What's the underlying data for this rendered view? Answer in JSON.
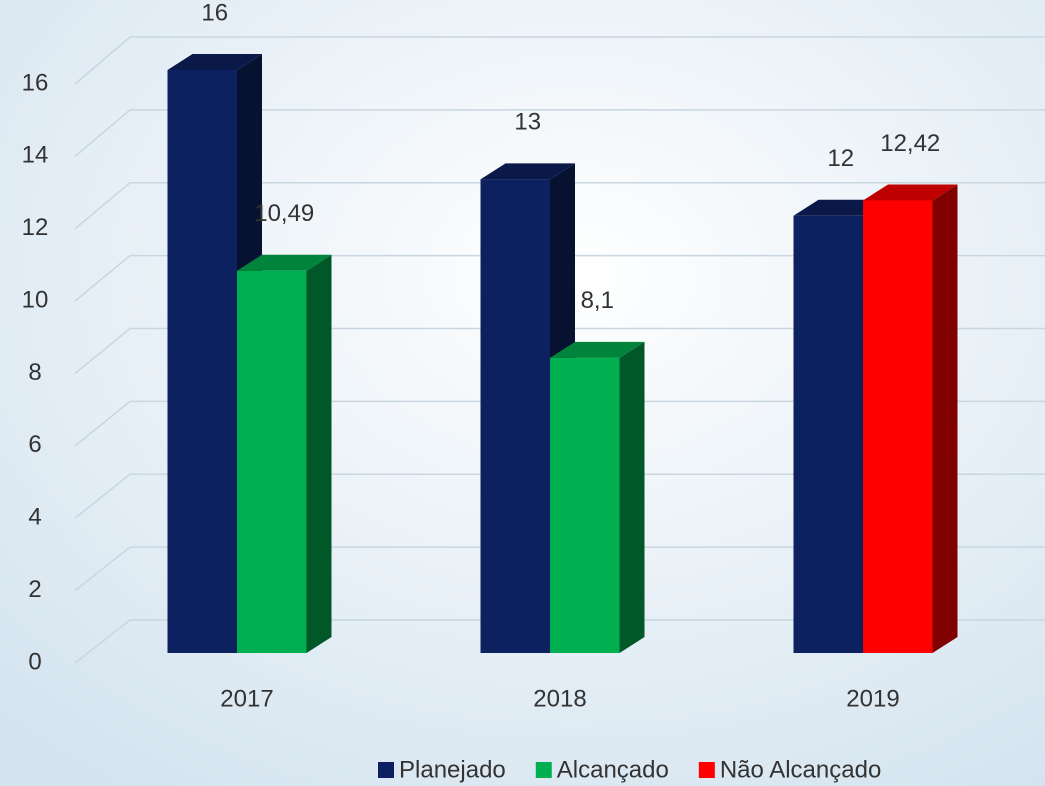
{
  "chart_data": {
    "type": "bar3d",
    "categories": [
      "2017",
      "2018",
      "2019"
    ],
    "series": [
      {
        "name": "Planejado",
        "color": "#0d2160",
        "values": [
          16,
          13,
          12
        ]
      },
      {
        "name": "Alcançado",
        "color": "#00b050",
        "values": [
          10.49,
          8.1,
          null
        ],
        "value_labels": [
          "10,49",
          "8,1",
          null
        ]
      },
      {
        "name": "Não Alcançado",
        "color": "#ff0000",
        "values": [
          null,
          null,
          12.42
        ],
        "value_labels": [
          null,
          null,
          "12,42"
        ]
      }
    ],
    "ylim": [
      0,
      16
    ],
    "yticks": [
      0,
      2,
      4,
      6,
      8,
      10,
      12,
      14,
      16
    ],
    "grid": true,
    "legend": "bottom-right"
  }
}
